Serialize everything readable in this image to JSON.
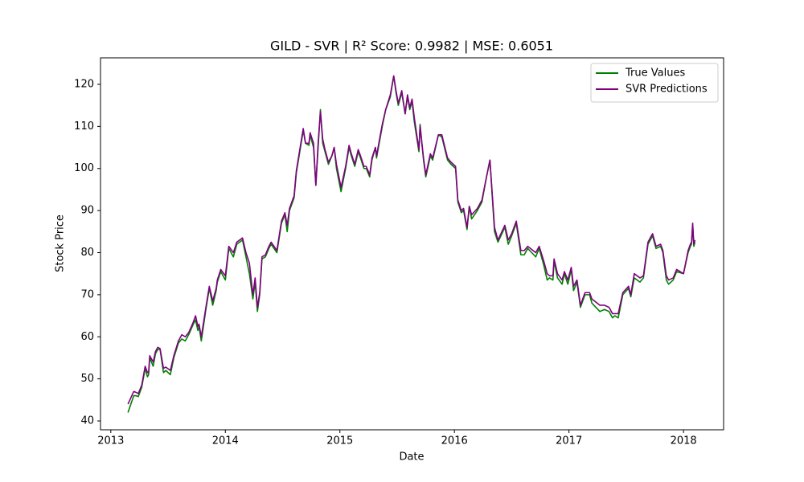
{
  "chart_data": {
    "type": "line",
    "title": "GILD - SVR | R² Score: 0.9982 | MSE: 0.6051",
    "xlabel": "Date",
    "ylabel": "Stock Price",
    "x": [
      2013.15,
      2013.2,
      2013.22,
      2013.24,
      2013.27,
      2013.29,
      2013.3,
      2013.32,
      2013.33,
      2013.34,
      2013.37,
      2013.39,
      2013.41,
      2013.43,
      2013.46,
      2013.48,
      2013.52,
      2013.55,
      2013.59,
      2013.62,
      2013.65,
      2013.68,
      2013.72,
      2013.74,
      2013.76,
      2013.77,
      2013.79,
      2013.83,
      2013.86,
      2013.89,
      2013.92,
      2013.93,
      2013.96,
      2014.0,
      2014.03,
      2014.07,
      2014.1,
      2014.15,
      2014.18,
      2014.21,
      2014.24,
      2014.26,
      2014.28,
      2014.3,
      2014.32,
      2014.35,
      2014.38,
      2014.4,
      2014.45,
      2014.49,
      2014.52,
      2014.54,
      2014.56,
      2014.6,
      2014.62,
      2014.68,
      2014.7,
      2014.73,
      2014.74,
      2014.77,
      2014.79,
      2014.81,
      2014.83,
      2014.85,
      2014.87,
      2014.9,
      2014.93,
      2014.95,
      2014.97,
      2015.01,
      2015.05,
      2015.08,
      2015.1,
      2015.13,
      2015.16,
      2015.18,
      2015.21,
      2015.23,
      2015.26,
      2015.28,
      2015.31,
      2015.32,
      2015.37,
      2015.4,
      2015.44,
      2015.47,
      2015.49,
      2015.51,
      2015.54,
      2015.57,
      2015.59,
      2015.61,
      2015.63,
      2015.65,
      2015.69,
      2015.7,
      2015.73,
      2015.75,
      2015.79,
      2015.81,
      2015.86,
      2015.89,
      2015.94,
      2015.97,
      2016.01,
      2016.03,
      2016.06,
      2016.08,
      2016.11,
      2016.13,
      2016.15,
      2016.2,
      2016.24,
      2016.28,
      2016.31,
      2016.35,
      2016.38,
      2016.44,
      2016.47,
      2016.5,
      2016.54,
      2016.58,
      2016.61,
      2016.64,
      2016.71,
      2016.74,
      2016.78,
      2016.81,
      2016.83,
      2016.86,
      2016.87,
      2016.9,
      2016.94,
      2016.96,
      2016.99,
      2017.02,
      2017.04,
      2017.07,
      2017.1,
      2017.14,
      2017.18,
      2017.2,
      2017.27,
      2017.31,
      2017.35,
      2017.38,
      2017.4,
      2017.43,
      2017.47,
      2017.52,
      2017.54,
      2017.57,
      2017.62,
      2017.65,
      2017.69,
      2017.73,
      2017.76,
      2017.8,
      2017.82,
      2017.85,
      2017.87,
      2017.91,
      2017.94,
      2018.0,
      2018.04,
      2018.06,
      2018.07,
      2018.08,
      2018.09,
      2018.1
    ],
    "series": [
      {
        "name": "True Values",
        "color": "#008000",
        "values": [
          42,
          46,
          46,
          45.8,
          48,
          51,
          52.5,
          50.5,
          51,
          55,
          53,
          56,
          57,
          57,
          51.5,
          52,
          51,
          55,
          58.5,
          59.5,
          59,
          60.5,
          63,
          64,
          61.5,
          62.5,
          59,
          66.5,
          71.5,
          67.5,
          71,
          73,
          75.5,
          73.5,
          81,
          79,
          82,
          83,
          79,
          75,
          69,
          73,
          66,
          70,
          78.5,
          79,
          81,
          82,
          80,
          87,
          89,
          85,
          90,
          93,
          99,
          109,
          106,
          105.5,
          108,
          105,
          96,
          105,
          114,
          106,
          104,
          101,
          103,
          105,
          100,
          94.5,
          100,
          105,
          103,
          100.5,
          104,
          102.5,
          100,
          100,
          98,
          102,
          105,
          102.5,
          110,
          114,
          117,
          122,
          118,
          115,
          118,
          113,
          117,
          114,
          116,
          111,
          104,
          110.5,
          102,
          98,
          103,
          102,
          108,
          107.5,
          102,
          101,
          100,
          92,
          89.5,
          90,
          85.5,
          91,
          88,
          90,
          92,
          98,
          102,
          85,
          82.5,
          86,
          82,
          84,
          87,
          79.5,
          79.5,
          81,
          79,
          81,
          77,
          73.5,
          74,
          73.5,
          78,
          74,
          72.5,
          75,
          72.5,
          76,
          71,
          73,
          67,
          70,
          70,
          68,
          66,
          66.5,
          66,
          64.5,
          65,
          64.5,
          70,
          71.5,
          69.5,
          74,
          73,
          74,
          82,
          84,
          81,
          81.5,
          80,
          73.5,
          72.5,
          73.5,
          75.5,
          75,
          80,
          81.5,
          82,
          86.5,
          81.5,
          82.5
        ]
      },
      {
        "name": "SVR Predictions",
        "color": "#800080",
        "values": [
          44,
          47,
          46.8,
          46.5,
          48.5,
          51.5,
          53,
          51.5,
          51.5,
          55.5,
          54,
          56.5,
          57.5,
          57.2,
          52.5,
          52.8,
          52,
          55.5,
          59,
          60.5,
          60,
          61,
          63.5,
          65,
          62.5,
          63,
          60,
          67,
          72,
          68.5,
          71.5,
          73.5,
          76,
          74.5,
          81.5,
          80,
          82.5,
          83.5,
          80,
          77.5,
          70,
          74,
          67,
          70.5,
          79,
          79.5,
          81.5,
          82.5,
          80.5,
          87.5,
          89.5,
          86.5,
          90.5,
          93.5,
          99.5,
          109.5,
          106,
          106,
          108.5,
          106,
          96,
          106,
          113.5,
          107,
          104.5,
          101.5,
          103,
          105,
          101,
          95.5,
          100.5,
          105.5,
          103.5,
          101,
          104.5,
          103,
          100.5,
          100.5,
          98.5,
          102.5,
          105,
          103,
          110.5,
          114,
          117.5,
          122,
          118.5,
          115.5,
          118.5,
          113,
          117.5,
          114.5,
          116.5,
          112,
          104.5,
          110,
          102.5,
          98.5,
          103.5,
          102.5,
          108,
          108,
          102.5,
          101.5,
          100.5,
          92.5,
          90,
          90.5,
          86,
          91,
          89,
          90.5,
          92.5,
          98,
          102,
          86,
          83,
          86.5,
          83,
          84.5,
          87.5,
          80.5,
          80.5,
          81.5,
          80,
          81.5,
          78,
          75,
          74.5,
          74.5,
          78.5,
          75,
          73.5,
          75.5,
          73.5,
          76.5,
          72,
          73.5,
          67.5,
          70.5,
          70.5,
          69,
          67.5,
          67.5,
          67,
          65.5,
          65.5,
          65.5,
          70.5,
          72,
          70,
          75,
          74,
          74.5,
          82.5,
          84.5,
          81.5,
          82,
          80.5,
          74.5,
          73.5,
          74,
          76,
          75,
          80.5,
          82,
          82.5,
          87,
          82,
          83
        ]
      }
    ],
    "xlim": [
      2012.91,
      2018.35
    ],
    "xticks": [
      2013,
      2014,
      2015,
      2016,
      2017,
      2018
    ],
    "ylim": [
      37.9,
      126.3
    ],
    "yticks": [
      40,
      50,
      60,
      70,
      80,
      90,
      100,
      110,
      120
    ],
    "legend": "upper right"
  }
}
